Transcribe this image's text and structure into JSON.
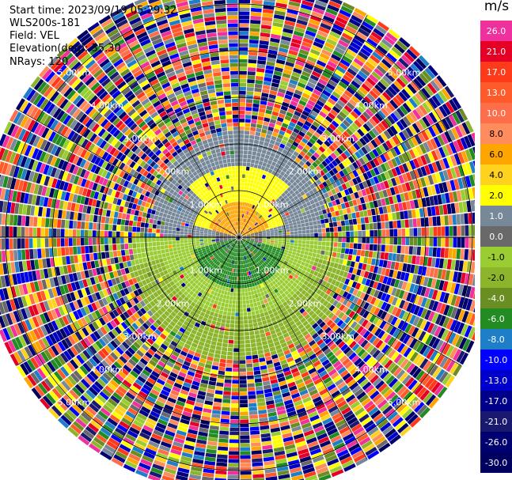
{
  "header": {
    "start_time": "Start time: 2023/09/19 05:29:32",
    "instrument": "WLS200s-181",
    "field": "Field: VEL",
    "elevation": "Elevation(deg): 35.30",
    "nrays": "NRays: 120"
  },
  "colorbar": {
    "unit": "m/s",
    "levels": [
      {
        "label": "26.0",
        "color": "#f0309c"
      },
      {
        "label": "21.0",
        "color": "#e60026"
      },
      {
        "label": "17.0",
        "color": "#ff3a1a"
      },
      {
        "label": "13.0",
        "color": "#ff5a2a"
      },
      {
        "label": "10.0",
        "color": "#ff6e4a"
      },
      {
        "label": "8.0",
        "color": "#ff8c5c"
      },
      {
        "label": "6.0",
        "color": "#ffa500"
      },
      {
        "label": "4.0",
        "color": "#ffd21e"
      },
      {
        "label": "2.0",
        "color": "#ffff00"
      },
      {
        "label": "1.0",
        "color": "#778899"
      },
      {
        "label": "0.0",
        "color": "#696969"
      },
      {
        "label": "-1.0",
        "color": "#9acd32"
      },
      {
        "label": "-2.0",
        "color": "#8db52b"
      },
      {
        "label": "-4.0",
        "color": "#6b8e23"
      },
      {
        "label": "-6.0",
        "color": "#228b22"
      },
      {
        "label": "-8.0",
        "color": "#1e7fc8"
      },
      {
        "label": "-10.0",
        "color": "#0000ff"
      },
      {
        "label": "-13.0",
        "color": "#0000cd"
      },
      {
        "label": "-17.0",
        "color": "#00008b"
      },
      {
        "label": "-21.0",
        "color": "#191970"
      },
      {
        "label": "-26.0",
        "color": "#000070"
      },
      {
        "label": "-30.0",
        "color": "#000060"
      }
    ]
  },
  "chart_data": {
    "type": "heatmap",
    "projection": "polar (PPI)",
    "field": "VEL",
    "unit": "m/s",
    "n_rays": 120,
    "elevation_deg": 35.3,
    "range_ring_labels_km": [
      "1.00km",
      "2.00km",
      "3.00km",
      "4.00km",
      "5.00km"
    ],
    "range_rings_km": [
      1,
      2,
      3,
      4,
      5
    ],
    "max_range_km": 5.5,
    "spoke_angles_deg": [
      0,
      30,
      60,
      90,
      120,
      150,
      180,
      210,
      240,
      270,
      300,
      330
    ],
    "approx_fields": [
      {
        "region": "north, 0-0.6 km",
        "velocity_ms": 6.0
      },
      {
        "region": "north, 0.6-1.5 km",
        "velocity_ms": 2.0
      },
      {
        "region": "east/west near axis, 1-1.8 km",
        "velocity_ms": 1.0
      },
      {
        "region": "south, 0-0.9 km",
        "velocity_ms": -6.0
      },
      {
        "region": "south, 0.9-2.3 km",
        "velocity_ms": -2.0
      },
      {
        "region": "beyond 2.3 km",
        "velocity_ms": "noise (all levels)"
      }
    ]
  }
}
